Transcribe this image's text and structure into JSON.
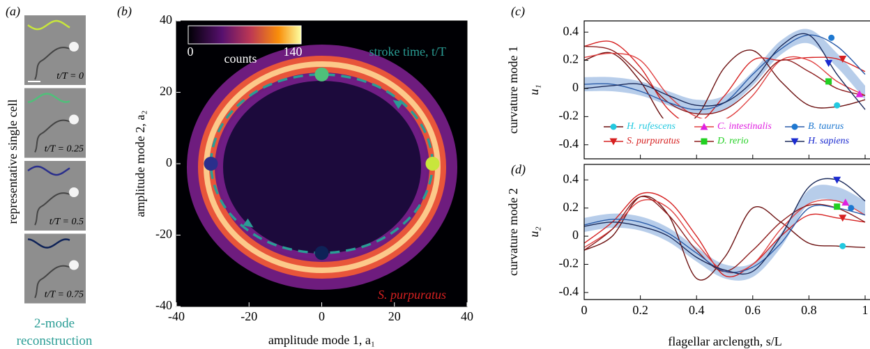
{
  "panel_labels": [
    "(a)",
    "(b)",
    "(c)",
    "(d)"
  ],
  "panel_a": {
    "ylabel": "representative single cell",
    "frames": [
      {
        "label": "t/T = 0",
        "color": "#c8e63c"
      },
      {
        "label": "t/T = 0.25",
        "color": "#4fc07a"
      },
      {
        "label": "t/T = 0.5",
        "color": "#2a2f8c"
      },
      {
        "label": "t/T = 0.75",
        "color": "#0e2257"
      }
    ],
    "caption": "2-mode reconstruction"
  },
  "chart_data": [
    {
      "type": "phase",
      "xlabel": "amplitude mode 1, a₁",
      "ylabel": "amplitude mode 2, a₂",
      "xlim": [
        -40,
        40
      ],
      "ylim": [
        -40,
        40
      ],
      "xticks": [
        -40,
        -20,
        0,
        20,
        40
      ],
      "yticks": [
        -40,
        -20,
        0,
        20,
        40
      ],
      "colorbar": {
        "label": "counts",
        "clim": [
          0,
          140
        ],
        "ticks": [
          0,
          140
        ]
      },
      "annotations": [
        {
          "text": "stroke time, t/T",
          "color": "#2a9d95"
        },
        {
          "text": "S. purpuratus",
          "color": "#d62020"
        }
      ],
      "cycle": {
        "x": [
          30.5,
          26.4,
          15.3,
          0,
          -15.3,
          -26.4,
          -30.5,
          -26.4,
          -15.3,
          0,
          15.3,
          26.4
        ],
        "y": [
          0,
          12.5,
          21.7,
          25,
          21.7,
          12.5,
          0,
          -12.5,
          -21.7,
          -25,
          -21.7,
          -12.5
        ],
        "color": "#2a9d95"
      },
      "points": {
        "x": [
          30.5,
          0,
          -30.5,
          0
        ],
        "y": [
          0,
          25,
          0,
          -25
        ],
        "colors": [
          "#c8e63c",
          "#4fc07a",
          "#2a2f8c",
          "#0e2257"
        ]
      }
    },
    {
      "type": "line",
      "ylabel": "curvature mode 1",
      "ylabel2": "u₁",
      "xlim": [
        0,
        1
      ],
      "ylim": [
        -0.5,
        0.48
      ],
      "xticks": [
        0,
        0.2,
        0.4,
        0.6,
        0.8,
        1
      ],
      "yticks": [
        -0.4,
        -0.2,
        0,
        0.2,
        0.4
      ],
      "show_xticklabels": false,
      "legend": "lower center",
      "x": [
        0,
        0.1,
        0.2,
        0.3,
        0.4,
        0.5,
        0.6,
        0.7,
        0.8,
        0.9,
        1
      ],
      "band": {
        "lower": [
          -0.02,
          -0.02,
          -0.05,
          -0.12,
          -0.18,
          -0.15,
          0.02,
          0.24,
          0.32,
          0.15,
          -0.08
        ],
        "upper": [
          0.08,
          0.08,
          0.05,
          -0.02,
          -0.08,
          -0.05,
          0.12,
          0.34,
          0.42,
          0.25,
          0.02
        ],
        "color": "#aac4e6"
      },
      "series": [
        {
          "name": "H. rufescens",
          "color": "#6b0f0f",
          "marker_color": "#22c9e0",
          "marker": "circle",
          "values": [
            0.2,
            0.25,
            0.05,
            -0.25,
            -0.2,
            0.15,
            0.27,
            0.05,
            -0.12,
            -0.13,
            -0.08
          ],
          "marker_x": 0.9,
          "marker_y": -0.12
        },
        {
          "name": "S. purpuratus",
          "color": "#d62020",
          "marker_color": "#d62020",
          "marker": "triangle-down",
          "values": [
            0.3,
            0.33,
            0.15,
            -0.15,
            -0.25,
            -0.05,
            0.2,
            0.2,
            0.22,
            0.21,
            0.12
          ],
          "marker_x": 0.92,
          "marker_y": 0.21
        },
        {
          "name": "C. intestinalis",
          "color": "#e04040",
          "marker_color": "#e020e0",
          "marker": "triangle-up",
          "values": [
            0.22,
            0.25,
            0.2,
            -0.05,
            -0.2,
            -0.22,
            -0.05,
            0.2,
            0.2,
            0.05,
            -0.05
          ],
          "marker_x": 0.98,
          "marker_y": -0.04
        },
        {
          "name": "D. rerio",
          "color": "#8b1a1a",
          "marker_color": "#22d022",
          "marker": "square",
          "values": [
            0.3,
            0.27,
            0.1,
            -0.1,
            -0.18,
            -0.15,
            0,
            0.2,
            0.12,
            0,
            -0.05
          ],
          "marker_x": 0.87,
          "marker_y": 0.05
        },
        {
          "name": "B. taurus",
          "color": "#2a5ba8",
          "marker_color": "#1e78d0",
          "marker": "circle",
          "values": [
            0.03,
            0.03,
            -0.02,
            -0.1,
            -0.15,
            -0.1,
            0.1,
            0.28,
            0.38,
            0.3,
            0.1
          ],
          "marker_x": 0.88,
          "marker_y": 0.36
        },
        {
          "name": "H. sapiens",
          "color": "#1a2a5a",
          "marker_color": "#1a2ad0",
          "marker": "triangle-down",
          "values": [
            0,
            0.02,
            0.03,
            -0.05,
            -0.12,
            -0.1,
            0.05,
            0.3,
            0.38,
            0.1,
            -0.15
          ],
          "marker_x": 0.87,
          "marker_y": 0.18
        }
      ]
    },
    {
      "type": "line",
      "ylabel": "curvature mode 2",
      "ylabel2": "u₂",
      "xlabel": "flagellar arclength, s/L",
      "xlim": [
        0,
        1
      ],
      "ylim": [
        -0.45,
        0.51
      ],
      "xticks": [
        0,
        0.2,
        0.4,
        0.6,
        0.8,
        1
      ],
      "yticks": [
        -0.4,
        -0.2,
        0,
        0.2,
        0.4
      ],
      "show_xticklabels": true,
      "x": [
        0,
        0.1,
        0.2,
        0.3,
        0.4,
        0.5,
        0.6,
        0.7,
        0.8,
        0.9,
        1
      ],
      "band": {
        "lower": [
          0.03,
          0.06,
          0.04,
          -0.04,
          -0.18,
          -0.3,
          -0.29,
          -0.08,
          0.23,
          0.25,
          0.15
        ],
        "upper": [
          0.13,
          0.16,
          0.14,
          0.06,
          -0.08,
          -0.2,
          -0.19,
          0.02,
          0.33,
          0.35,
          0.25
        ],
        "color": "#aac4e6"
      },
      "series": [
        {
          "color": "#6b0f0f",
          "marker_color": "#22c9e0",
          "marker": "circle",
          "values": [
            -0.1,
            0,
            0.28,
            0.15,
            -0.3,
            -0.15,
            0.2,
            0.1,
            -0.05,
            -0.07,
            -0.08
          ],
          "marker_x": 0.92,
          "marker_y": -0.07
        },
        {
          "color": "#d62020",
          "marker_color": "#d62020",
          "marker": "triangle-down",
          "values": [
            -0.05,
            0.1,
            0.3,
            0.25,
            0,
            -0.28,
            -0.2,
            0,
            0.15,
            0.13,
            0.1
          ],
          "marker_x": 0.92,
          "marker_y": 0.13
        },
        {
          "color": "#e04040",
          "marker_color": "#e020e0",
          "marker": "triangle-up",
          "values": [
            -0.08,
            0.05,
            0.25,
            0.2,
            -0.05,
            -0.25,
            -0.2,
            0.05,
            0.23,
            0.25,
            0.15
          ],
          "marker_x": 0.93,
          "marker_y": 0.24
        },
        {
          "color": "#8b1a1a",
          "marker_color": "#22d022",
          "marker": "square",
          "values": [
            -0.1,
            0.05,
            0.28,
            0.15,
            -0.1,
            -0.25,
            -0.1,
            0.1,
            0.22,
            0.2,
            0.1
          ],
          "marker_x": 0.9,
          "marker_y": 0.21
        },
        {
          "color": "#2a5ba8",
          "marker_color": "#1e78d0",
          "marker": "circle",
          "values": [
            0.08,
            0.12,
            0.1,
            0.02,
            -0.12,
            -0.25,
            -0.22,
            -0.05,
            0.2,
            0.2,
            0.15
          ],
          "marker_x": 0.95,
          "marker_y": 0.2
        },
        {
          "color": "#1a2a5a",
          "marker_color": "#1a2ad0",
          "marker": "triangle-down",
          "values": [
            0.07,
            0.1,
            0.07,
            0,
            -0.15,
            -0.24,
            -0.25,
            0,
            0.35,
            0.4,
            0.25
          ],
          "marker_x": 0.9,
          "marker_y": 0.4
        }
      ]
    }
  ]
}
